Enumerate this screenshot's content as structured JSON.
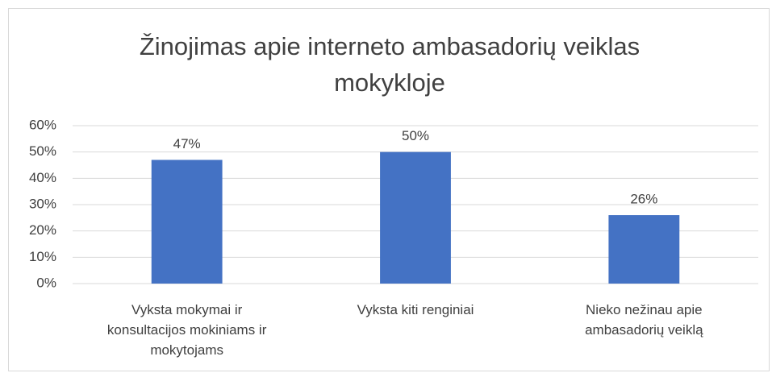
{
  "chart_data": {
    "type": "bar",
    "title": "Žinojimas apie interneto ambasadorių veiklas mokykloje",
    "categories": [
      "Vyksta mokymai ir konsultacijos mokiniams ir mokytojams",
      "Vyksta kiti renginiai",
      "Nieko nežinau apie ambasadorių veiklą"
    ],
    "values": [
      47,
      50,
      26
    ],
    "value_labels": [
      "47%",
      "50%",
      "26%"
    ],
    "color": "#4472c4",
    "ylim": [
      0,
      60
    ],
    "yticks": [
      {
        "value": 0,
        "label": "0%"
      },
      {
        "value": 10,
        "label": "10%"
      },
      {
        "value": 20,
        "label": "20%"
      },
      {
        "value": 30,
        "label": "30%"
      },
      {
        "value": 40,
        "label": "40%"
      },
      {
        "value": 50,
        "label": "50%"
      },
      {
        "value": 60,
        "label": "60%"
      }
    ],
    "grid": true
  }
}
